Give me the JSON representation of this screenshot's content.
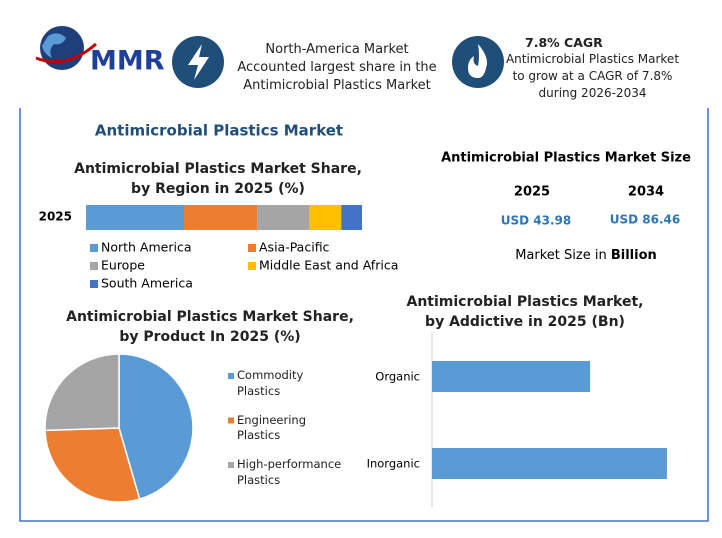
{
  "header": {
    "logo": "MMR",
    "highlight_1": "North-America Market Accounted largest share in the Antimicrobial Plastics Market",
    "highlight_2_title": "7.8% CAGR",
    "highlight_2": "Antimicrobial Plastics Market to grow at a CAGR of 7.8% during 2026-2034"
  },
  "title": "Antimicrobial Plastics Market",
  "market_size": {
    "title": "Antimicrobial Plastics Market Size",
    "years": [
      "2025",
      "2034"
    ],
    "values": [
      "USD 43.98",
      "USD 86.46"
    ],
    "note": "Market Size in",
    "note_unit": "Billion"
  },
  "chart_data": [
    {
      "type": "stacked_bar",
      "title": "Antimicrobial Plastics Market Share, by Region in 2025 (%)",
      "categories": [
        "2025"
      ],
      "xlim": [
        0,
        100
      ],
      "series": [
        {
          "name": "North America",
          "color": "#5b9bd5",
          "values": [
            35.5
          ]
        },
        {
          "name": "Asia-Pacific",
          "color": "#ed7d31",
          "values": [
            26.5
          ]
        },
        {
          "name": "Europe",
          "color": "#a5a5a5",
          "values": [
            19
          ]
        },
        {
          "name": "Middle East and Africa",
          "color": "#ffc000",
          "values": [
            11.5
          ]
        },
        {
          "name": "South America",
          "color": "#4472c4",
          "values": [
            7.5
          ]
        }
      ]
    },
    {
      "type": "pie",
      "title": "Antimicrobial Plastics Market Share, by Product In 2025 (%)",
      "categories": [
        "Commodity Plastics",
        "Engineering Plastics",
        "High-performance Plastics"
      ],
      "values": [
        45.5,
        29,
        25.5
      ],
      "colors": [
        "#5b9bd5",
        "#ed7d31",
        "#a5a5a5"
      ]
    },
    {
      "type": "barh",
      "title": "Antimicrobial Plastics Market, by Addictive in 2025 (Bn)",
      "categories": [
        "Organic",
        "Inorganic"
      ],
      "values": [
        17.7,
        26.3
      ],
      "color": "#5b9bd5",
      "xlim": [
        0,
        30
      ]
    }
  ]
}
